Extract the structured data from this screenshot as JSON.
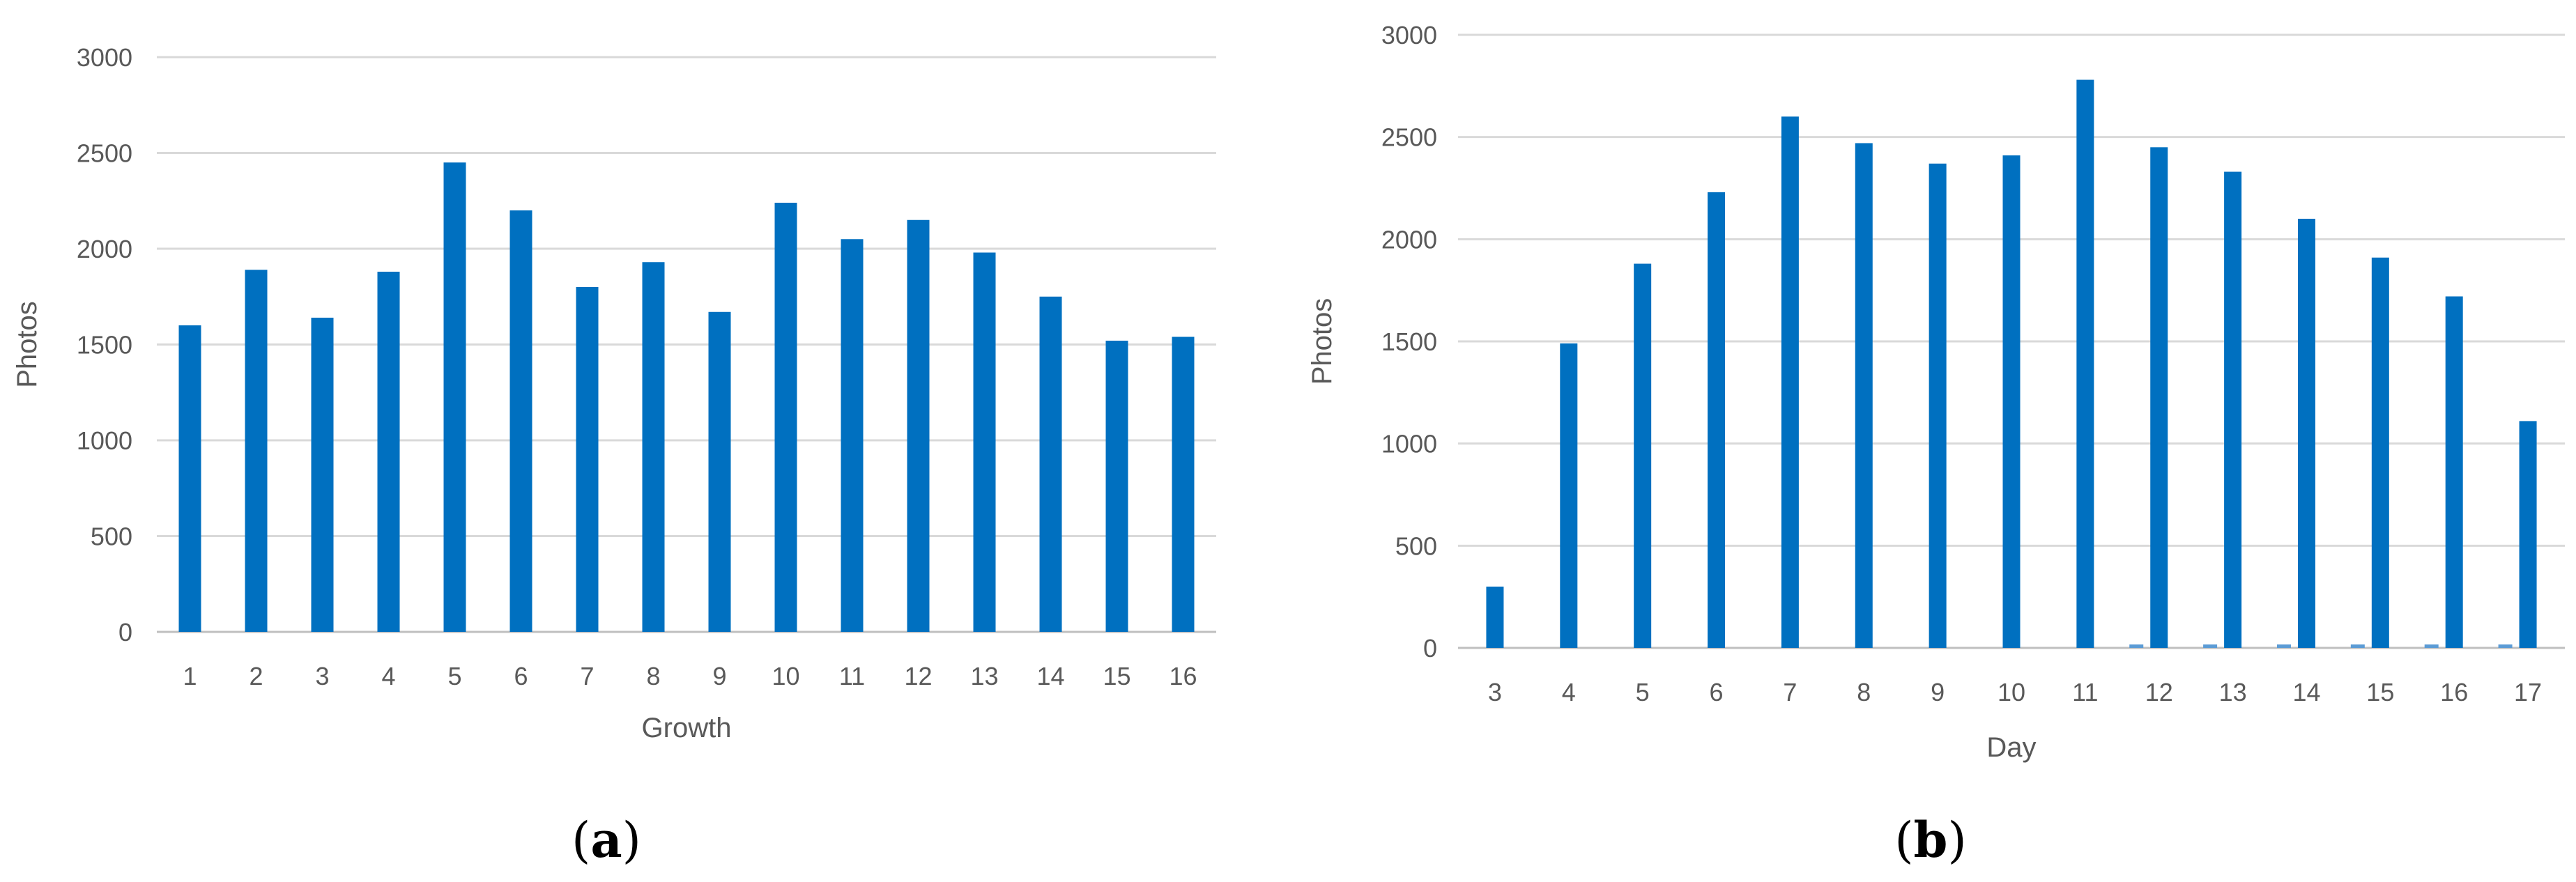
{
  "chart_data": [
    {
      "type": "bar",
      "panel": "a",
      "panel_label": {
        "open": "(",
        "letter": "a",
        "close": ")"
      },
      "xlabel": "Growth",
      "ylabel": "Photos",
      "ylim": [
        0,
        3000
      ],
      "yticks": [
        0,
        500,
        1000,
        1500,
        2000,
        2500,
        3000
      ],
      "grid": true,
      "legend": "none",
      "bar_color": "#0070c0",
      "categories": [
        "1",
        "2",
        "3",
        "4",
        "5",
        "6",
        "7",
        "8",
        "9",
        "10",
        "11",
        "12",
        "13",
        "14",
        "15",
        "16"
      ],
      "values": [
        1600,
        1890,
        1640,
        1880,
        2450,
        2200,
        1800,
        1930,
        1670,
        2240,
        2050,
        2150,
        1980,
        1750,
        1520,
        1540
      ]
    },
    {
      "type": "bar",
      "panel": "b",
      "panel_label": {
        "open": "(",
        "letter": "b",
        "close": ")"
      },
      "xlabel": "Day",
      "ylabel": "Photos",
      "ylim": [
        0,
        3000
      ],
      "yticks": [
        0,
        500,
        1000,
        1500,
        2000,
        2500,
        3000
      ],
      "grid": true,
      "legend": "none",
      "bar_color": "#0070c0",
      "secondary_color": "#5b9bd5",
      "categories": [
        "3",
        "4",
        "5",
        "6",
        "7",
        "8",
        "9",
        "10",
        "11",
        "12",
        "13",
        "14",
        "15",
        "16",
        "17"
      ],
      "series": [
        {
          "values": [
            300,
            1490,
            1880,
            2230,
            2600,
            2470,
            2370,
            2410,
            2780,
            2450,
            2330,
            2100,
            1910,
            1720,
            1110
          ]
        },
        {
          "values": [
            0,
            0,
            0,
            0,
            0,
            0,
            0,
            0,
            0,
            10,
            10,
            10,
            10,
            10,
            10
          ]
        }
      ]
    }
  ]
}
